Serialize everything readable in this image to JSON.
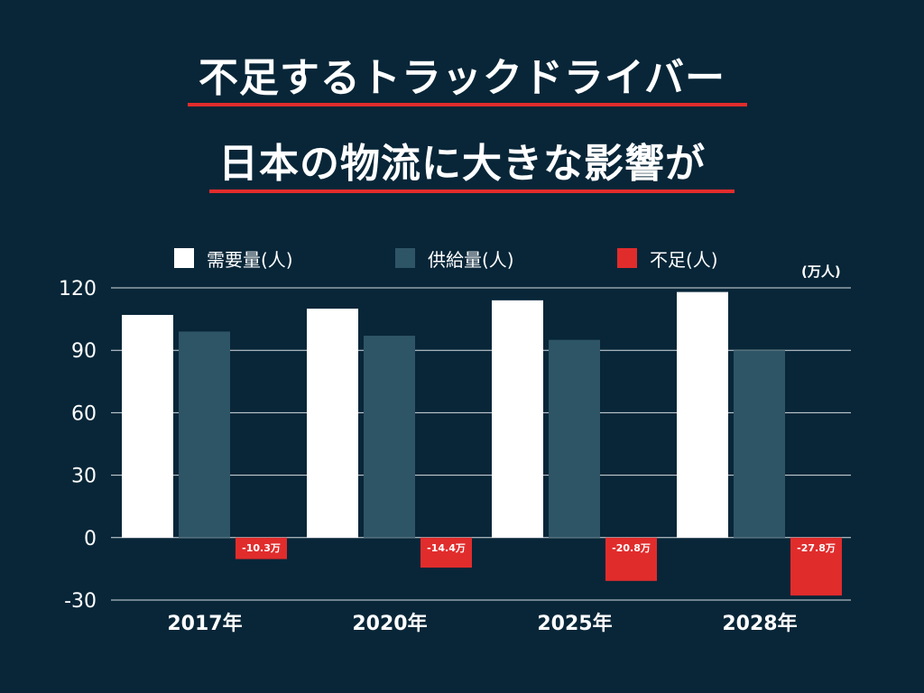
{
  "colors": {
    "background": "#082638",
    "demand": "#ffffff",
    "supply": "#2e5566",
    "shortage": "#e12c2c",
    "accent_line": "#e12c2c",
    "grid": "#d9dee2"
  },
  "headline": {
    "line1": "不足するトラックドライバー",
    "line2": "日本の物流に大きな影響が"
  },
  "chart_data": {
    "type": "bar",
    "categories": [
      "2017年",
      "2020年",
      "2025年",
      "2028年"
    ],
    "series": [
      {
        "name": "需要量(人)",
        "color_key": "demand",
        "values": [
          107,
          110,
          114,
          118
        ]
      },
      {
        "name": "供給量(人)",
        "color_key": "supply",
        "values": [
          99,
          97,
          95,
          90
        ]
      },
      {
        "name": "不足(人)",
        "color_key": "shortage",
        "values": [
          -10.3,
          -14.4,
          -20.8,
          -27.8
        ]
      }
    ],
    "data_labels": [
      "-10.3万",
      "-14.4万",
      "-20.8万",
      "-27.8万"
    ],
    "unit_label": "(万人)",
    "yticks": [
      "120",
      "90",
      "60",
      "30",
      "0",
      "-30"
    ],
    "ytick_values": [
      120,
      90,
      60,
      30,
      0,
      -30
    ],
    "ylim": [
      -30,
      120
    ],
    "grid": true,
    "legend_position": "top",
    "title": "",
    "xlabel": "",
    "ylabel": ""
  }
}
